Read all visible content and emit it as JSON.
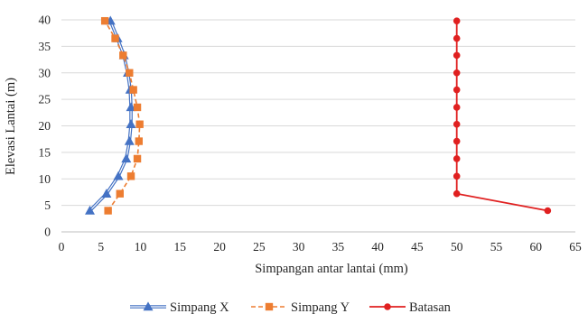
{
  "chart_data": {
    "type": "line",
    "xlabel": "Simpangan antar lantai (mm)",
    "ylabel": "Elevasi Lantai (m)",
    "xlim": [
      0,
      65
    ],
    "ylim": [
      0,
      40
    ],
    "xticks": [
      "0",
      "5",
      "10",
      "15",
      "20",
      "25",
      "30",
      "35",
      "40",
      "45",
      "50",
      "55",
      "60",
      "65"
    ],
    "yticks": [
      "0",
      "5",
      "10",
      "15",
      "20",
      "25",
      "30",
      "35",
      "40"
    ],
    "grid": "horizontal",
    "legend_position": "bottom",
    "series": [
      {
        "name": "Simpang X",
        "color": "#4472C4",
        "line_style": "double",
        "marker": "triangle",
        "x": [
          3.6,
          5.7,
          7.2,
          8.2,
          8.6,
          8.8,
          8.8,
          8.7,
          8.4,
          7.9,
          7.1,
          6.2
        ],
        "y": [
          4,
          7.2,
          10.5,
          13.8,
          17.1,
          20.3,
          23.5,
          26.8,
          30.0,
          33.3,
          36.5,
          39.8
        ]
      },
      {
        "name": "Simpang Y",
        "color": "#ED7D31",
        "line_style": "dashed",
        "marker": "square",
        "x": [
          5.9,
          7.4,
          8.8,
          9.6,
          9.8,
          9.9,
          9.6,
          9.1,
          8.6,
          7.8,
          6.8,
          5.5
        ],
        "y": [
          4,
          7.2,
          10.5,
          13.8,
          17.1,
          20.3,
          23.5,
          26.8,
          30.0,
          33.3,
          36.5,
          39.8
        ]
      },
      {
        "name": "Batasan",
        "color": "#E02020",
        "line_style": "solid",
        "marker": "circle",
        "x": [
          61.5,
          50,
          50,
          50,
          50,
          50,
          50,
          50,
          50,
          50,
          50,
          50
        ],
        "y": [
          4,
          7.2,
          10.5,
          13.8,
          17.1,
          20.3,
          23.5,
          26.8,
          30.0,
          33.3,
          36.5,
          39.8
        ]
      }
    ]
  }
}
